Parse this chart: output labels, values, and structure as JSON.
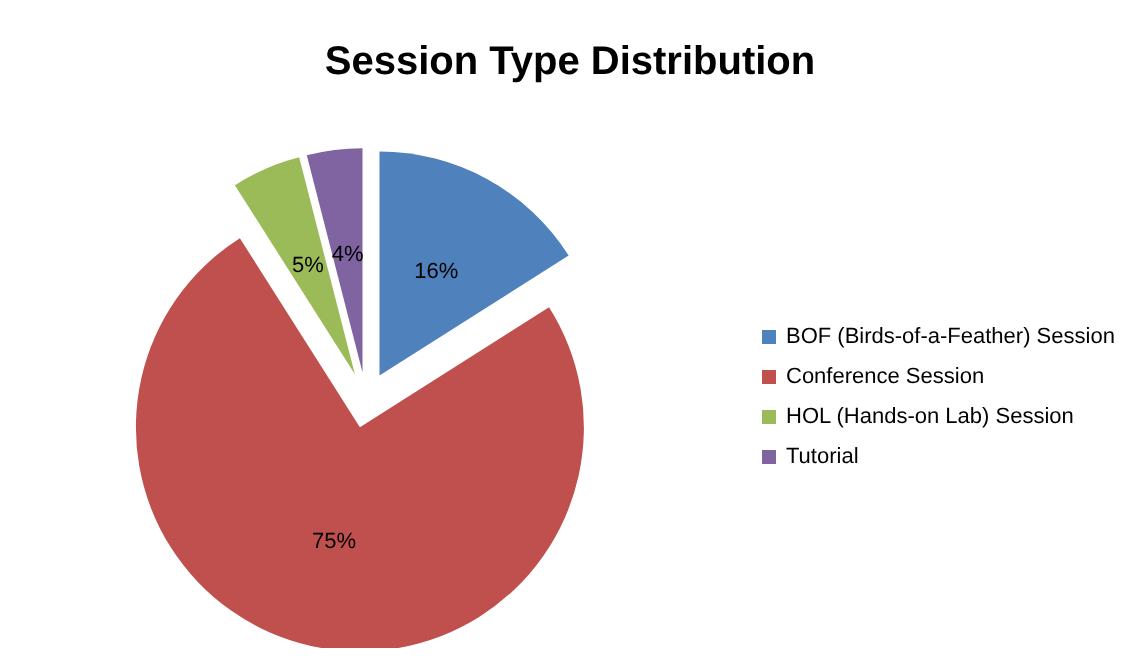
{
  "chart_data": {
    "type": "pie",
    "title": "Session Type Distribution",
    "categories": [
      "BOF (Birds-of-a-Feather) Session",
      "Conference Session",
      "HOL (Hands-on Lab) Session",
      "Tutorial"
    ],
    "values": [
      16,
      75,
      5,
      4
    ],
    "colors": [
      "#4f81bd",
      "#c0504d",
      "#9bbb59",
      "#8064a2"
    ],
    "value_labels": [
      "16%",
      "75%",
      "5%",
      "4%"
    ],
    "legend": "right"
  }
}
